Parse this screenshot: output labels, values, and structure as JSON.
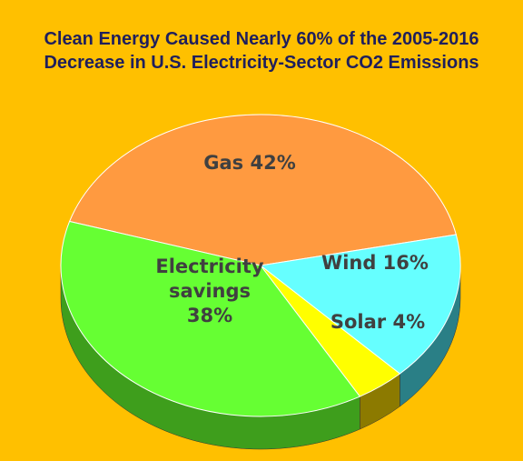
{
  "chart_data": {
    "type": "pie",
    "title_lines": [
      "Clean Energy Caused Nearly 60% of the 2005-2016",
      "Decrease in U.S. Electricity-Sector CO2 Emissions"
    ],
    "slices": [
      {
        "name": "Gas",
        "value": 42,
        "label_lines": [
          "Gas 42%"
        ],
        "color": "#FF9A40",
        "side_color": "#B35A10"
      },
      {
        "name": "Wind",
        "value": 16,
        "label_lines": [
          "Wind 16%"
        ],
        "color": "#66FFFF",
        "side_color": "#2A7F86"
      },
      {
        "name": "Solar",
        "value": 4,
        "label_lines": [
          "Solar 4%"
        ],
        "color": "#FFFF00",
        "side_color": "#8C7A00"
      },
      {
        "name": "Electricity savings",
        "value": 38,
        "label_lines": [
          "Electricity",
          "savings",
          "38%"
        ],
        "color": "#66FF33",
        "side_color": "#3E9E1C"
      }
    ],
    "background": "#FFC000",
    "title_color": "#1F1F5C",
    "label_color": "#404040",
    "style": "3d-pie"
  }
}
